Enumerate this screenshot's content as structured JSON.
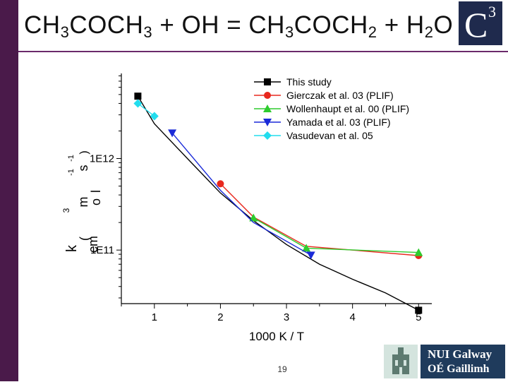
{
  "slide": {
    "title_parts": [
      {
        "t": "CH",
        "sub": false
      },
      {
        "t": "3",
        "sub": true
      },
      {
        "t": "COCH",
        "sub": false
      },
      {
        "t": "3",
        "sub": true
      },
      {
        "t": " + OH = CH",
        "sub": false
      },
      {
        "t": "3",
        "sub": true
      },
      {
        "t": "COCH",
        "sub": false
      },
      {
        "t": "2",
        "sub": true
      },
      {
        "t": " + H",
        "sub": false
      },
      {
        "t": "2",
        "sub": true
      },
      {
        "t": "O",
        "sub": false
      }
    ],
    "logo_letter": "C",
    "logo_superscript": "3",
    "page_number": "19",
    "institution": {
      "line1": "NUI Galway",
      "line2": "OÉ Gaillimh"
    },
    "accent_color": "#4a1a4a"
  },
  "chart_data": {
    "type": "line",
    "xlabel": "1000 K / T",
    "ylabel_fragments": [
      "k",
      "(",
      "cm",
      "3",
      "m",
      "o",
      "l",
      "-1",
      "s",
      "-1",
      ")"
    ],
    "y_scale": "log",
    "xlim": [
      0.5,
      5.2
    ],
    "ylim": [
      26000000000.0,
      8500000000000.0
    ],
    "x_ticks": [
      1,
      2,
      3,
      4,
      5
    ],
    "x_tick_labels": [
      "1",
      "2",
      "3",
      "4",
      "5"
    ],
    "y_ticks": [
      100000000000.0,
      1000000000000.0
    ],
    "y_tick_labels": [
      "1E11",
      "1E12"
    ],
    "grid": false,
    "legend_position": "top-right",
    "series": [
      {
        "name": "This study",
        "color": "#000000",
        "marker": "square",
        "x": [
          0.75,
          1.0,
          1.5,
          2.0,
          2.5,
          3.0,
          3.5,
          4.0,
          4.5,
          5.0
        ],
        "y": [
          4800000000000.0,
          2400000000000.0,
          1000000000000.0,
          420000000000.0,
          210000000000.0,
          115000000000.0,
          70000000000.0,
          48000000000.0,
          34000000000.0,
          22000000000.0
        ],
        "marker_indices": [
          0,
          9
        ]
      },
      {
        "name": "Gierczak et al. 03 (PLIF)",
        "color": "#e8281e",
        "marker": "circle",
        "x": [
          2.0,
          2.5,
          3.3,
          4.0,
          5.0
        ],
        "y": [
          530000000000.0,
          230000000000.0,
          110000000000.0,
          100000000000.0,
          87000000000.0
        ],
        "marker_indices": [
          0,
          4
        ]
      },
      {
        "name": "Wollenhaupt et al. 00 (PLIF)",
        "color": "#2ecc2e",
        "marker": "triangle-up",
        "x": [
          2.5,
          3.3,
          5.0
        ],
        "y": [
          225000000000.0,
          105000000000.0,
          94000000000.0
        ],
        "marker_indices": [
          0,
          1,
          2
        ]
      },
      {
        "name": "Yamada et al. 03 (PLIF)",
        "color": "#1a2ad8",
        "marker": "triangle-down",
        "x": [
          1.27,
          2.0,
          2.5,
          3.37
        ],
        "y": [
          1900000000000.0,
          450000000000.0,
          200000000000.0,
          88000000000.0
        ],
        "marker_indices": [
          0,
          3
        ]
      },
      {
        "name": "Vasudevan et al. 05",
        "color": "#22ddee",
        "marker": "diamond",
        "x": [
          0.75,
          1.0
        ],
        "y": [
          4000000000000.0,
          2900000000000.0
        ],
        "marker_indices": [
          0,
          1
        ]
      }
    ]
  }
}
